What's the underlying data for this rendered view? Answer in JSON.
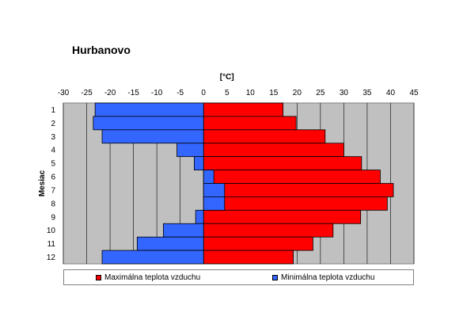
{
  "chart_data": {
    "type": "bar",
    "title": "Hurbanovo",
    "unit_label": "[°C]",
    "ylabel": "Mesiac",
    "categories": [
      "1",
      "2",
      "3",
      "4",
      "5",
      "6",
      "7",
      "8",
      "9",
      "10",
      "11",
      "12"
    ],
    "xlim": [
      -30,
      45
    ],
    "xticks": [
      "-30",
      "-25",
      "-20",
      "-15",
      "-10",
      "-5",
      "0",
      "5",
      "10",
      "15",
      "20",
      "25",
      "30",
      "35",
      "40",
      "45"
    ],
    "series": [
      {
        "name": "Maximálna teplota vzduchu",
        "color": "#ff0000",
        "values": [
          17,
          19.8,
          26,
          30,
          33.8,
          37.8,
          40.6,
          39.3,
          33.6,
          27.7,
          23.4,
          19.2
        ]
      },
      {
        "name": "Minimálna teplota vzduchu",
        "color": "#3366ff",
        "values": [
          -23.2,
          -23.6,
          -21.7,
          -5.7,
          -2,
          2.2,
          4.5,
          4.5,
          -1.7,
          -8.6,
          -14.2,
          -21.7
        ]
      }
    ],
    "grid": true,
    "plot_background": "#c0c0c0",
    "legend_position": "bottom"
  }
}
